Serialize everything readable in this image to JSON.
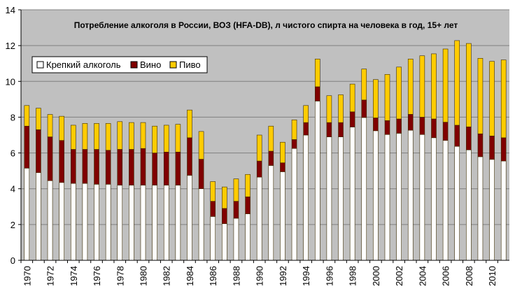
{
  "chart_data": {
    "type": "bar",
    "stacked": true,
    "title": "Потребление алкоголя в России, ВОЗ (HFA-DB), л чистого спирта на человека в год, 15+ лет",
    "xlabel": "",
    "ylabel": "",
    "ylim": [
      0,
      14
    ],
    "yticks": [
      0,
      2,
      4,
      6,
      8,
      10,
      12,
      14
    ],
    "grid": true,
    "legend_position": "top-left",
    "categories": [
      1970,
      1971,
      1972,
      1973,
      1974,
      1975,
      1976,
      1977,
      1978,
      1979,
      1980,
      1981,
      1982,
      1983,
      1984,
      1985,
      1986,
      1987,
      1988,
      1989,
      1990,
      1991,
      1992,
      1993,
      1994,
      1995,
      1996,
      1997,
      1998,
      1999,
      2000,
      2001,
      2002,
      2003,
      2004,
      2005,
      2006,
      2007,
      2008,
      2009,
      2010,
      2011
    ],
    "xtick_labels": [
      "1970",
      "1972",
      "1974",
      "1976",
      "1978",
      "1980",
      "1982",
      "1984",
      "1986",
      "1988",
      "1990",
      "1992",
      "1994",
      "1996",
      "1998",
      "2000",
      "2002",
      "2004",
      "2006",
      "2008",
      "2010"
    ],
    "series": [
      {
        "name": "Крепкий алкоголь",
        "color": "#ffffff",
        "values": [
          5.15,
          4.9,
          4.45,
          4.35,
          4.3,
          4.3,
          4.25,
          4.25,
          4.2,
          4.2,
          4.2,
          4.2,
          4.2,
          4.2,
          4.75,
          4.0,
          2.45,
          2.05,
          2.35,
          2.6,
          4.65,
          5.3,
          4.95,
          6.25,
          7.0,
          8.9,
          6.9,
          6.9,
          7.45,
          7.98,
          7.24,
          7.03,
          7.1,
          7.27,
          7.03,
          6.85,
          6.7,
          6.37,
          6.17,
          5.79,
          5.64,
          5.55
        ]
      },
      {
        "name": "Вино",
        "color": "#800000",
        "values": [
          2.35,
          2.4,
          2.45,
          2.35,
          1.9,
          1.9,
          1.95,
          1.9,
          2.0,
          2.0,
          2.05,
          1.8,
          1.85,
          1.85,
          2.1,
          1.65,
          0.85,
          0.85,
          0.95,
          0.95,
          0.9,
          0.8,
          0.5,
          0.5,
          0.7,
          0.8,
          0.8,
          0.8,
          0.85,
          0.98,
          0.72,
          0.78,
          0.8,
          0.89,
          0.97,
          1.05,
          1.02,
          1.18,
          1.29,
          1.28,
          1.31,
          1.3
        ]
      },
      {
        "name": "Пиво",
        "color": "#ffcc00",
        "values": [
          1.15,
          1.2,
          1.25,
          1.35,
          1.35,
          1.45,
          1.45,
          1.5,
          1.55,
          1.5,
          1.45,
          1.5,
          1.5,
          1.55,
          1.55,
          1.55,
          1.1,
          1.2,
          1.25,
          1.25,
          1.45,
          1.4,
          1.15,
          1.1,
          0.95,
          1.55,
          1.5,
          1.55,
          1.55,
          1.73,
          2.14,
          2.58,
          2.9,
          3.09,
          3.43,
          3.64,
          4.09,
          4.73,
          4.66,
          4.22,
          4.17,
          4.35
        ]
      }
    ]
  }
}
